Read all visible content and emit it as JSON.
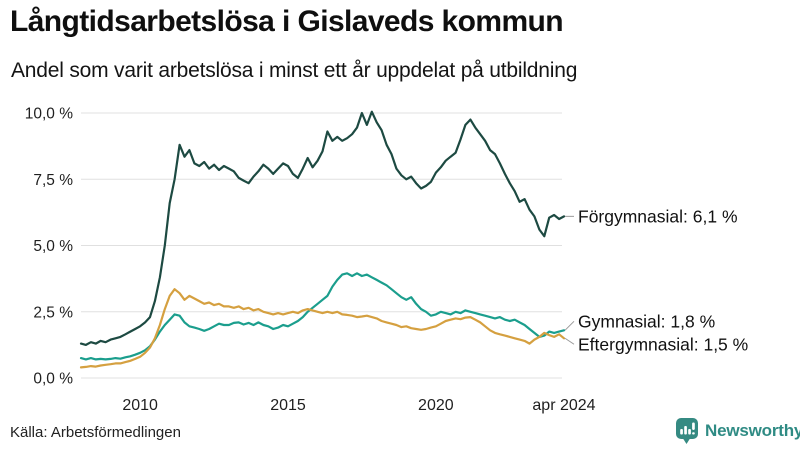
{
  "header": {
    "title": "Långtidsarbetslösa i Gislaveds kommun",
    "subtitle": "Andel som varit arbetslösa i minst ett år uppdelat på utbildning"
  },
  "footer": {
    "source": "Källa: Arbetsförmedlingen",
    "brand": "Newsworthy",
    "brand_color": "#2f8b84"
  },
  "chart_data": {
    "type": "line",
    "title": "Långtidsarbetslösa i Gislaveds kommun",
    "subtitle": "Andel som varit arbetslösa i minst ett år uppdelat på utbildning",
    "unit": "%",
    "grid": true,
    "legend_position": "right-edge-labels",
    "x_axis": {
      "start": 2008,
      "end": 2024.3333,
      "step_years": 0.166667,
      "ticks": [
        {
          "v": 2010,
          "label": "2010"
        },
        {
          "v": 2015,
          "label": "2015"
        },
        {
          "v": 2020,
          "label": "2020"
        },
        {
          "v": 2024.3333,
          "label": "apr 2024"
        }
      ]
    },
    "y_axis": {
      "min": 0,
      "max": 10.5,
      "ticks": [
        {
          "v": 0,
          "label": "0,0 %"
        },
        {
          "v": 2.5,
          "label": "2,5 %"
        },
        {
          "v": 5,
          "label": "5,0 %"
        },
        {
          "v": 7.5,
          "label": "7,5 %"
        },
        {
          "v": 10,
          "label": "10,0 %"
        }
      ]
    },
    "grid_color": "#e0e0e0",
    "series": [
      {
        "name": "Förgymnasial",
        "color": "#1d4a42",
        "end_label": "Förgymnasial: 6,1 %",
        "end_value": 6.1,
        "values": [
          1.3,
          1.25,
          1.35,
          1.3,
          1.4,
          1.35,
          1.45,
          1.5,
          1.55,
          1.65,
          1.75,
          1.85,
          1.95,
          2.1,
          2.3,
          2.9,
          3.8,
          5.0,
          6.6,
          7.5,
          8.8,
          8.35,
          8.6,
          8.1,
          8.0,
          8.15,
          7.9,
          8.05,
          7.85,
          8.0,
          7.9,
          7.8,
          7.55,
          7.45,
          7.35,
          7.6,
          7.8,
          8.05,
          7.9,
          7.7,
          7.9,
          8.1,
          8.0,
          7.7,
          7.55,
          7.9,
          8.3,
          7.95,
          8.2,
          8.55,
          9.3,
          8.95,
          9.1,
          8.95,
          9.05,
          9.2,
          9.45,
          10.0,
          9.55,
          10.05,
          9.65,
          9.35,
          8.8,
          8.45,
          7.9,
          7.65,
          7.5,
          7.6,
          7.35,
          7.15,
          7.25,
          7.4,
          7.75,
          7.95,
          8.2,
          8.35,
          8.5,
          9.0,
          9.55,
          9.75,
          9.45,
          9.2,
          8.95,
          8.6,
          8.45,
          8.1,
          7.7,
          7.35,
          7.05,
          6.65,
          6.75,
          6.35,
          6.1,
          5.6,
          5.35,
          6.05,
          6.15,
          6.0,
          6.1
        ]
      },
      {
        "name": "Gymnasial",
        "color": "#1b9e8d",
        "end_label": "Gymnasial: 1,8 %",
        "end_value": 1.8,
        "values": [
          0.75,
          0.7,
          0.75,
          0.7,
          0.72,
          0.7,
          0.72,
          0.75,
          0.73,
          0.78,
          0.82,
          0.88,
          0.95,
          1.05,
          1.2,
          1.45,
          1.75,
          2.0,
          2.2,
          2.4,
          2.35,
          2.1,
          1.95,
          1.9,
          1.85,
          1.78,
          1.85,
          1.95,
          2.05,
          2.0,
          2.0,
          2.08,
          2.1,
          2.02,
          2.08,
          2.0,
          2.1,
          2.0,
          1.95,
          1.85,
          1.9,
          2.0,
          1.95,
          2.05,
          2.15,
          2.3,
          2.5,
          2.65,
          2.8,
          2.95,
          3.1,
          3.45,
          3.7,
          3.9,
          3.95,
          3.85,
          3.95,
          3.85,
          3.9,
          3.8,
          3.7,
          3.6,
          3.5,
          3.35,
          3.2,
          3.05,
          2.95,
          3.05,
          2.8,
          2.6,
          2.5,
          2.35,
          2.4,
          2.5,
          2.45,
          2.4,
          2.5,
          2.45,
          2.55,
          2.5,
          2.45,
          2.4,
          2.35,
          2.3,
          2.25,
          2.3,
          2.2,
          2.15,
          2.2,
          2.1,
          2.0,
          1.85,
          1.7,
          1.55,
          1.6,
          1.75,
          1.7,
          1.75,
          1.8
        ]
      },
      {
        "name": "Eftergymnasial",
        "color": "#d5a040",
        "end_label": "Eftergymnasial: 1,5 %",
        "end_value": 1.5,
        "values": [
          0.4,
          0.42,
          0.45,
          0.43,
          0.47,
          0.5,
          0.52,
          0.55,
          0.55,
          0.6,
          0.65,
          0.72,
          0.8,
          0.95,
          1.15,
          1.5,
          2.0,
          2.6,
          3.1,
          3.35,
          3.2,
          2.95,
          3.1,
          3.0,
          2.9,
          2.8,
          2.85,
          2.75,
          2.8,
          2.7,
          2.7,
          2.65,
          2.7,
          2.6,
          2.65,
          2.55,
          2.6,
          2.5,
          2.45,
          2.4,
          2.45,
          2.4,
          2.45,
          2.5,
          2.45,
          2.55,
          2.6,
          2.55,
          2.5,
          2.45,
          2.5,
          2.45,
          2.5,
          2.4,
          2.38,
          2.35,
          2.3,
          2.32,
          2.35,
          2.3,
          2.25,
          2.15,
          2.1,
          2.05,
          2.0,
          1.92,
          1.95,
          1.88,
          1.85,
          1.82,
          1.85,
          1.9,
          1.95,
          2.05,
          2.15,
          2.2,
          2.25,
          2.22,
          2.28,
          2.3,
          2.2,
          2.1,
          1.95,
          1.8,
          1.7,
          1.65,
          1.6,
          1.55,
          1.5,
          1.45,
          1.4,
          1.3,
          1.45,
          1.55,
          1.7,
          1.62,
          1.55,
          1.65,
          1.5
        ]
      }
    ]
  }
}
